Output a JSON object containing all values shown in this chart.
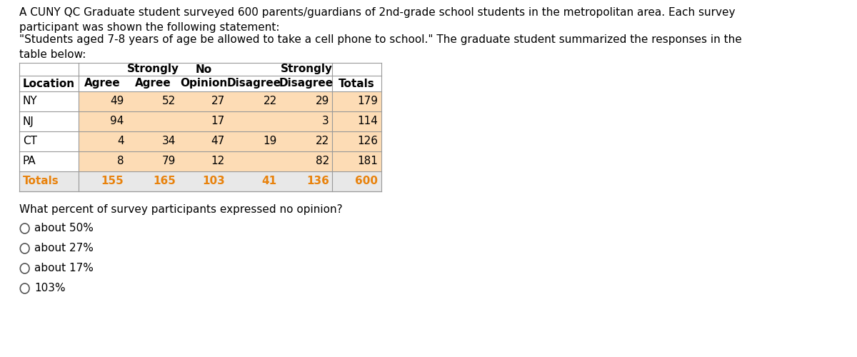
{
  "paragraph1": "A CUNY QC Graduate student surveyed 600 parents/guardians of 2nd-grade school students in the metropolitan area. Each survey\nparticipant was shown the following statement:",
  "paragraph2": "\"Students aged 7-8 years of age be allowed to take a cell phone to school.\" The graduate student summarized the responses in the\ntable below:",
  "question": "What percent of survey participants expressed no opinion?",
  "choices": [
    "about 50%",
    "about 27%",
    "about 17%",
    "103%"
  ],
  "col_headers_row1": [
    "",
    "",
    "Strongly",
    "No",
    "",
    "Strongly",
    ""
  ],
  "col_headers_row2": [
    "Location",
    "Agree",
    "Agree",
    "Opinion",
    "Disagree",
    "Disagree",
    "Totals"
  ],
  "rows": [
    [
      "NY",
      "49",
      "52",
      "27",
      "22",
      "29",
      "179"
    ],
    [
      "NJ",
      "94",
      "",
      "17",
      "",
      "3",
      "114"
    ],
    [
      "CT",
      "4",
      "34",
      "47",
      "19",
      "22",
      "126"
    ],
    [
      "PA",
      "8",
      "79",
      "12",
      "",
      "82",
      "181"
    ],
    [
      "Totals",
      "155",
      "165",
      "103",
      "41",
      "136",
      "600"
    ]
  ],
  "bg_color_data": "#FDDCB5",
  "bg_color_totals_row": "#F0F0F0",
  "text_color_orange": "#E8820C",
  "border_color": "#999999",
  "font_size_para": 11,
  "font_size_table": 11,
  "font_size_question": 11
}
